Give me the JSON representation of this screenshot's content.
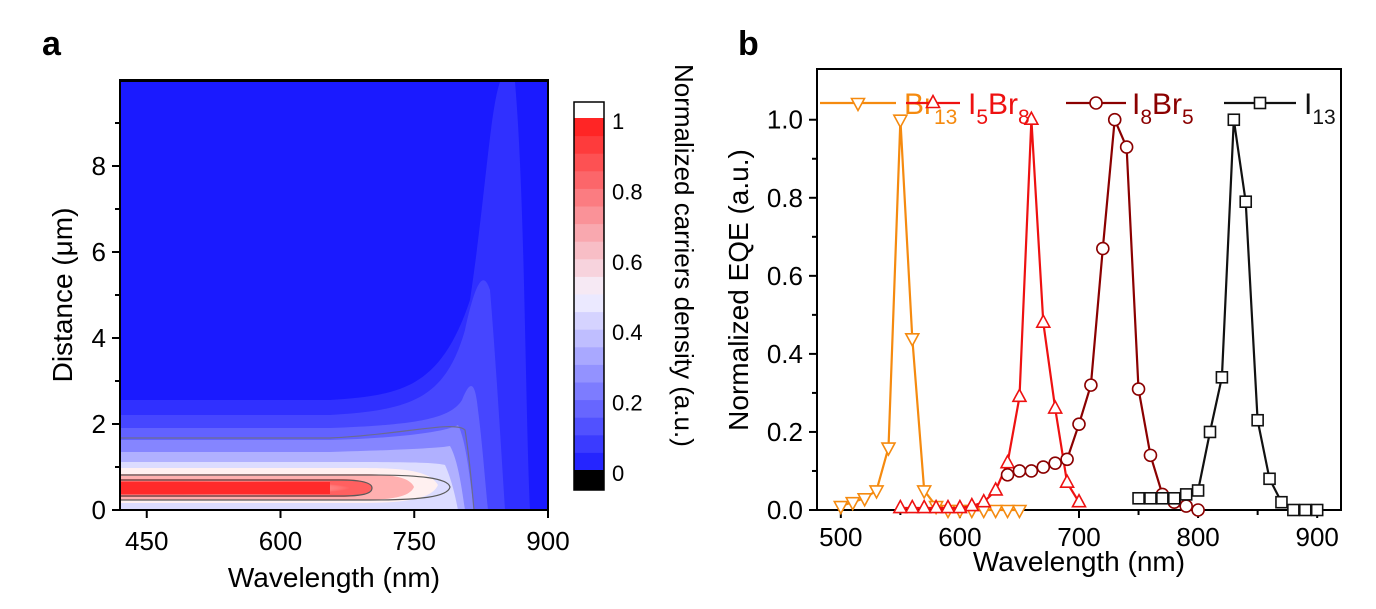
{
  "panels": {
    "a": {
      "label": "a",
      "xlabel": "Wavelength (nm)",
      "ylabel": "Distance (μm)",
      "colorbar_label": "Normalized carriers density (a.u.)",
      "xlim": [
        420,
        900
      ],
      "ylim": [
        0,
        10
      ],
      "xticks": [
        450,
        600,
        750,
        900
      ],
      "yticks": [
        0,
        2,
        4,
        6,
        8
      ],
      "colorbar_ticks": [
        "0",
        "0.2",
        "0.4",
        "0.6",
        "0.8",
        "1"
      ],
      "colors": {
        "low": "#1a1aff",
        "mid": "#f6f4ff",
        "high": "#ff1a1a"
      }
    },
    "b": {
      "label": "b",
      "xlabel": "Wavelength (nm)",
      "ylabel": "Normalized EQE (a.u.)",
      "xticks": [
        500,
        600,
        700,
        800,
        900
      ],
      "yticks": [
        "0.0",
        "0.2",
        "0.4",
        "0.6",
        "0.8",
        "1.0"
      ]
    }
  },
  "chart_data": [
    {
      "type": "heatmap",
      "title": "",
      "xlabel": "Wavelength (nm)",
      "ylabel": "Distance (μm)",
      "xlim": [
        420,
        900
      ],
      "ylim": [
        0,
        10
      ],
      "colorbar": {
        "label": "Normalized carriers density (a.u.)",
        "range": [
          0,
          1
        ]
      },
      "description_values": {
        "peak_distance_um": 0.4,
        "peak_wavelength_range_nm": [
          430,
          640
        ]
      }
    },
    {
      "type": "line",
      "title": "",
      "xlabel": "Wavelength (nm)",
      "ylabel": "Normalized EQE (a.u.)",
      "xlim": [
        480,
        920
      ],
      "ylim": [
        0,
        1.13
      ],
      "legend_position": "top",
      "series": [
        {
          "name": "Br13",
          "name_base": "Br",
          "name_sub": "13",
          "color": "#f58a0f",
          "marker": "triangle-down",
          "x": [
            500,
            510,
            520,
            530,
            540,
            550,
            560,
            570,
            580,
            590,
            600,
            610,
            620,
            630,
            640,
            650
          ],
          "y": [
            0.01,
            0.02,
            0.03,
            0.05,
            0.16,
            1.0,
            0.44,
            0.05,
            0.01,
            0.0,
            0.0,
            0.0,
            0.0,
            0.0,
            0.0,
            0.0
          ]
        },
        {
          "name": "I5Br8",
          "name_parts": [
            "I",
            "5",
            "Br",
            "8"
          ],
          "color": "#ee1111",
          "marker": "triangle-up",
          "x": [
            550,
            560,
            570,
            580,
            590,
            600,
            610,
            620,
            630,
            640,
            650,
            660,
            670,
            680,
            690,
            700
          ],
          "y": [
            0.005,
            0.005,
            0.005,
            0.005,
            0.005,
            0.005,
            0.01,
            0.02,
            0.05,
            0.12,
            0.29,
            1.0,
            0.48,
            0.26,
            0.07,
            0.02
          ]
        },
        {
          "name": "I8Br5",
          "name_parts": [
            "I",
            "8",
            "Br",
            "5"
          ],
          "color": "#8b0000",
          "marker": "circle",
          "x": [
            640,
            650,
            660,
            670,
            680,
            690,
            700,
            710,
            720,
            730,
            740,
            750,
            760,
            770,
            780,
            790,
            800
          ],
          "y": [
            0.09,
            0.1,
            0.1,
            0.11,
            0.12,
            0.13,
            0.22,
            0.32,
            0.67,
            1.0,
            0.93,
            0.31,
            0.14,
            0.04,
            0.02,
            0.01,
            0.0
          ]
        },
        {
          "name": "I13",
          "name_base": "I",
          "name_sub": "13",
          "color": "#111111",
          "marker": "square",
          "x": [
            750,
            760,
            770,
            780,
            790,
            800,
            810,
            820,
            830,
            840,
            850,
            860,
            870,
            880,
            890,
            900
          ],
          "y": [
            0.03,
            0.03,
            0.03,
            0.03,
            0.04,
            0.05,
            0.2,
            0.34,
            1.0,
            0.79,
            0.23,
            0.08,
            0.02,
            0.0,
            0.0,
            0.0
          ]
        }
      ]
    }
  ]
}
